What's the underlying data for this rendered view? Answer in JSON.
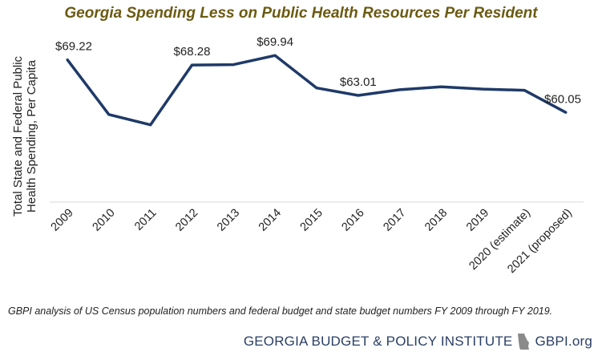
{
  "title": "Georgia Spending Less on Public Health Resources Per Resident",
  "source_note": "GBPI analysis of US Census population numbers and federal budget and state budget numbers FY 2009 through FY 2019.",
  "footer": {
    "org": "GEORGIA BUDGET & POLICY INSTITUTE",
    "site": "GBPI.org",
    "icon": "georgia-state-icon"
  },
  "colors": {
    "line": "#1f3a68",
    "title": "#6b5a12",
    "footer": "#2a3f66",
    "axis": "#d9d9d9"
  },
  "chart_data": {
    "type": "line",
    "title": "Georgia Spending Less on Public Health Resources Per Resident",
    "xlabel": "",
    "ylabel": "Total State and Federal Public Health Spending, Per Capita",
    "categories": [
      "2009",
      "2010",
      "2011",
      "2012",
      "2013",
      "2014",
      "2015",
      "2016",
      "2017",
      "2018",
      "2019",
      "2020 (estimate)",
      "2021 (proposed)"
    ],
    "series": [
      {
        "values": [
          69.22,
          59.7,
          57.9,
          68.28,
          68.35,
          69.94,
          64.3,
          63.01,
          64.0,
          64.5,
          64.1,
          63.9,
          60.05
        ]
      }
    ],
    "data_labels": [
      {
        "index": 0,
        "text": "$69.22"
      },
      {
        "index": 3,
        "text": "$68.28"
      },
      {
        "index": 5,
        "text": "$69.94"
      },
      {
        "index": 7,
        "text": "$63.01"
      },
      {
        "index": 12,
        "text": "$60.05"
      }
    ],
    "ylim": [
      44.5,
      74.0
    ],
    "grid": false,
    "legend": "none"
  }
}
